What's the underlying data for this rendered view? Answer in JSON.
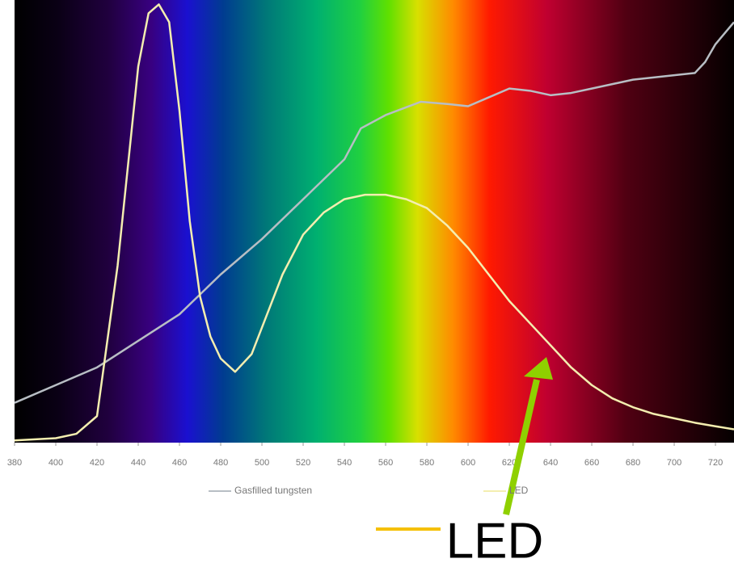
{
  "chart_data": {
    "type": "line",
    "xlim": [
      380,
      729
    ],
    "ylim": [
      0,
      100
    ],
    "xticks": [
      380,
      400,
      420,
      440,
      460,
      480,
      500,
      520,
      540,
      560,
      580,
      600,
      620,
      640,
      660,
      680,
      700,
      720
    ],
    "series": [
      {
        "name": "Gasfilled tungsten",
        "color": "#b8bec4",
        "x": [
          380,
          400,
          420,
          440,
          460,
          480,
          500,
          520,
          540,
          548,
          560,
          577,
          590,
          600,
          610,
          620,
          630,
          640,
          650,
          660,
          670,
          680,
          690,
          700,
          710,
          715,
          720,
          729
        ],
        "values": [
          9,
          13,
          17,
          23,
          29,
          38,
          46,
          55,
          64,
          71,
          74,
          77,
          76.5,
          76,
          78,
          80,
          79.5,
          78.5,
          79,
          80,
          81,
          82,
          82.5,
          83,
          83.5,
          86,
          90,
          95
        ]
      },
      {
        "name": "LED",
        "color": "#f4eeb0",
        "x": [
          380,
          400,
          410,
          420,
          430,
          440,
          445,
          450,
          455,
          460,
          465,
          470,
          475,
          480,
          487,
          495,
          500,
          510,
          520,
          530,
          540,
          550,
          560,
          570,
          580,
          590,
          600,
          610,
          620,
          630,
          640,
          650,
          660,
          670,
          680,
          690,
          700,
          710,
          720,
          729
        ],
        "values": [
          0.5,
          1,
          2,
          6,
          40,
          85,
          97,
          99,
          95,
          75,
          50,
          33,
          24,
          19,
          16,
          20,
          26,
          38,
          47,
          52,
          55,
          56,
          56,
          55,
          53,
          49,
          44,
          38,
          32,
          27,
          22,
          17,
          13,
          10,
          8,
          6.5,
          5.5,
          4.5,
          3.7,
          3
        ]
      }
    ],
    "annotations": [
      {
        "text": "LED"
      }
    ]
  }
}
